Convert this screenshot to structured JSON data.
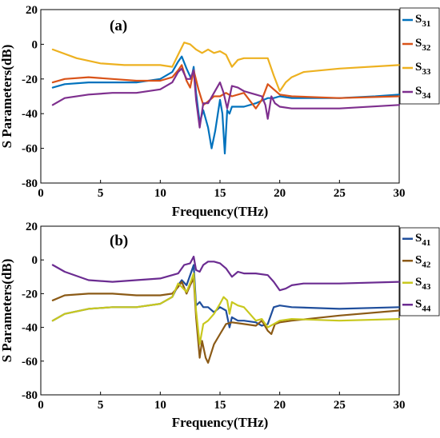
{
  "chart_data": [
    {
      "type": "line",
      "panel_label": "(a)",
      "xlabel": "Frequency(THz)",
      "ylabel": "S Parameters(dB)",
      "xlim": [
        0,
        30
      ],
      "ylim": [
        -80,
        20
      ],
      "xticks": [
        "0",
        "5",
        "10",
        "15",
        "20",
        "25",
        "30"
      ],
      "yticks": [
        "20",
        "0",
        "-20",
        "-40",
        "-60",
        "-80"
      ],
      "legend_position": "top-right",
      "series": [
        {
          "name": "S31",
          "label_main": "S",
          "label_sub": "31",
          "color": "#0072BD",
          "x": [
            1,
            2,
            4,
            6,
            8,
            10,
            11,
            11.5,
            11.8,
            12.2,
            12.6,
            12.8,
            13.0,
            13.3,
            13.6,
            14.0,
            14.3,
            14.6,
            15.0,
            15.2,
            15.4,
            15.6,
            15.8,
            16.0,
            17,
            18,
            19,
            19.5,
            20,
            21,
            22,
            25,
            28,
            30
          ],
          "y": [
            -25,
            -23,
            -22,
            -22,
            -22,
            -20,
            -16,
            -10,
            -7,
            -14,
            -20,
            -13,
            -28,
            -45,
            -38,
            -48,
            -60,
            -50,
            -32,
            -40,
            -63,
            -38,
            -40,
            -36,
            -36,
            -34,
            -31,
            -31,
            -30,
            -31,
            -31,
            -31,
            -30,
            -29
          ]
        },
        {
          "name": "S32",
          "label_main": "S",
          "label_sub": "32",
          "color": "#D95319",
          "x": [
            1,
            2,
            4,
            6,
            8,
            10,
            11,
            11.5,
            11.8,
            12.2,
            12.5,
            12.8,
            13.2,
            13.6,
            14.0,
            14.5,
            15.0,
            15.5,
            16,
            17,
            18,
            18.5,
            19,
            19.5,
            20,
            21,
            25,
            30
          ],
          "y": [
            -22,
            -20,
            -19,
            -20,
            -21,
            -21,
            -19,
            -15,
            -12,
            -21,
            -25,
            -15,
            -26,
            -35,
            -33,
            -30,
            -30,
            -28,
            -30,
            -28,
            -37,
            -32,
            -23,
            -26,
            -29,
            -30,
            -31,
            -30
          ]
        },
        {
          "name": "S33",
          "label_main": "S",
          "label_sub": "33",
          "color": "#EDB120",
          "x": [
            1,
            3,
            5,
            7,
            9,
            10,
            11,
            11.5,
            12,
            12.5,
            13,
            13.5,
            14,
            14.5,
            15,
            15.5,
            16,
            16.5,
            17,
            18,
            19,
            19.5,
            20,
            20.5,
            21,
            22,
            25,
            30
          ],
          "y": [
            -3,
            -8,
            -11,
            -12,
            -12,
            -12,
            -13,
            -6,
            1,
            0,
            -3,
            -5,
            -3,
            -5,
            -4,
            -6,
            -13,
            -9,
            -8,
            -8,
            -8,
            -18,
            -27,
            -22,
            -19,
            -16,
            -14,
            -12
          ]
        },
        {
          "name": "S34",
          "label_main": "S",
          "label_sub": "34",
          "color": "#7E2F8E",
          "x": [
            1,
            2,
            4,
            6,
            8,
            10,
            11,
            11.5,
            11.8,
            12.2,
            12.5,
            12.8,
            13.0,
            13.3,
            13.6,
            14.0,
            14.5,
            15.0,
            15.3,
            15.6,
            16,
            16.5,
            17,
            17.5,
            18,
            18.5,
            18.8,
            19,
            19.3,
            19.6,
            20,
            21,
            25,
            30
          ],
          "y": [
            -35,
            -31,
            -29,
            -28,
            -28,
            -26,
            -22,
            -16,
            -14,
            -20,
            -20,
            -15,
            -32,
            -48,
            -34,
            -34,
            -28,
            -22,
            -28,
            -37,
            -24,
            -25,
            -27,
            -28,
            -29,
            -30,
            -35,
            -43,
            -30,
            -34,
            -36,
            -37,
            -37,
            -35
          ]
        }
      ]
    },
    {
      "type": "line",
      "panel_label": "(b)",
      "xlabel": "Frequency(THz)",
      "ylabel": "S Parameters(dB)",
      "xlim": [
        0,
        30
      ],
      "ylim": [
        -80,
        20
      ],
      "xticks": [
        "0",
        "5",
        "10",
        "15",
        "20",
        "25",
        "30"
      ],
      "yticks": [
        "20",
        "0",
        "-20",
        "-40",
        "-60",
        "-80"
      ],
      "legend_position": "top-right",
      "series": [
        {
          "name": "S41",
          "label_main": "S",
          "label_sub": "41",
          "color": "#1F4E9C",
          "x": [
            1,
            2,
            4,
            6,
            8,
            10,
            11,
            11.5,
            11.8,
            12.2,
            12.6,
            12.8,
            13.0,
            13.3,
            13.6,
            14.0,
            14.5,
            15.0,
            15.5,
            15.8,
            16.0,
            16.5,
            17,
            18,
            18.5,
            19,
            19.5,
            20,
            21,
            25,
            30
          ],
          "y": [
            -36,
            -32,
            -29,
            -28,
            -28,
            -26,
            -22,
            -15,
            -12,
            -15,
            -7,
            -3,
            -27,
            -25,
            -28,
            -28,
            -31,
            -28,
            -30,
            -40,
            -34,
            -36,
            -36,
            -37,
            -39,
            -38,
            -28,
            -27,
            -28,
            -29,
            -28
          ]
        },
        {
          "name": "S42",
          "label_main": "S",
          "label_sub": "42",
          "color": "#8B5A16",
          "x": [
            1,
            2,
            4,
            6,
            8,
            10,
            11,
            11.5,
            11.8,
            12.2,
            12.5,
            12.8,
            13.0,
            13.3,
            13.5,
            13.8,
            14.0,
            14.5,
            15.0,
            15.5,
            16,
            17,
            18,
            18.5,
            19,
            19.3,
            19.6,
            20,
            21,
            25,
            30
          ],
          "y": [
            -24,
            -21,
            -20,
            -20,
            -21,
            -21,
            -20,
            -16,
            -13,
            -20,
            -15,
            -11,
            -34,
            -58,
            -48,
            -58,
            -61,
            -50,
            -44,
            -38,
            -37,
            -38,
            -39,
            -36,
            -42,
            -44,
            -38,
            -37,
            -36,
            -33,
            -30
          ]
        },
        {
          "name": "S43",
          "label_main": "S",
          "label_sub": "43",
          "color": "#C8C81E",
          "x": [
            1,
            2,
            4,
            6,
            8,
            10,
            11,
            11.5,
            11.8,
            12.2,
            12.6,
            12.8,
            13.0,
            13.3,
            13.6,
            14.0,
            14.5,
            15.0,
            15.3,
            15.6,
            15.8,
            16.0,
            16.5,
            17,
            17.5,
            18,
            18.5,
            19,
            19.5,
            20,
            21,
            25,
            30
          ],
          "y": [
            -36,
            -32,
            -29,
            -28,
            -28,
            -26,
            -22,
            -14,
            -16,
            -19,
            -12,
            -8,
            -30,
            -50,
            -38,
            -36,
            -32,
            -26,
            -22,
            -24,
            -32,
            -25,
            -27,
            -28,
            -32,
            -36,
            -35,
            -40,
            -38,
            -36,
            -35,
            -36,
            -35
          ]
        },
        {
          "name": "S44",
          "label_main": "S",
          "label_sub": "44",
          "color": "#6B2C91",
          "x": [
            1,
            2,
            4,
            6,
            8,
            10,
            11,
            11.5,
            12,
            12.5,
            12.8,
            13.0,
            13.3,
            13.6,
            14,
            14.5,
            15,
            15.5,
            16,
            16.5,
            17,
            18,
            19,
            19.5,
            20,
            20.5,
            21,
            22,
            25,
            30
          ],
          "y": [
            -3,
            -7,
            -12,
            -13,
            -12,
            -11,
            -9,
            -8,
            -3,
            -2,
            2,
            -6,
            -7,
            -3,
            -1,
            -1,
            -2,
            -5,
            -10,
            -7,
            -8,
            -8,
            -9,
            -13,
            -18,
            -17,
            -15,
            -14,
            -14,
            -13
          ]
        }
      ]
    }
  ]
}
